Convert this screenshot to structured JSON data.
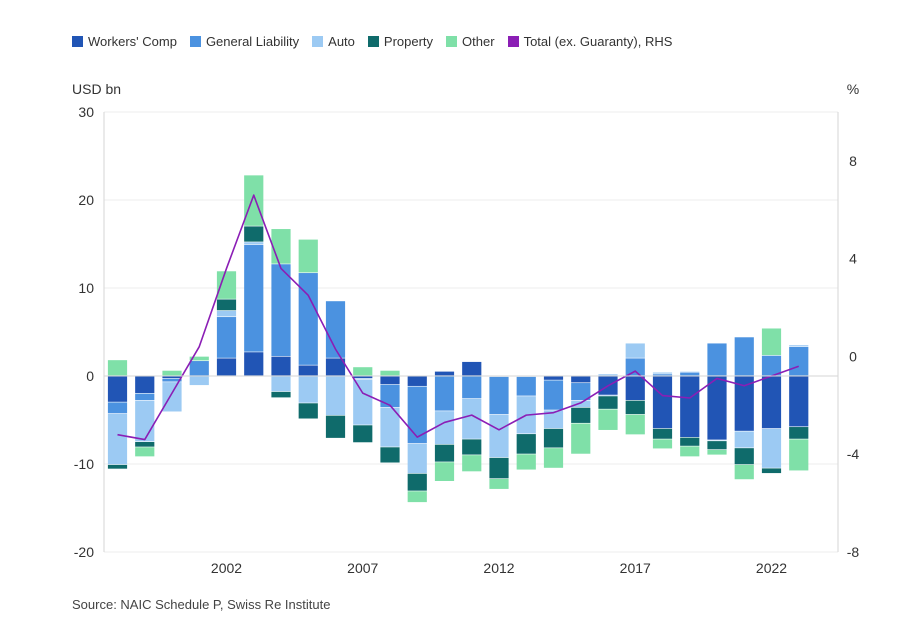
{
  "chart_data": {
    "type": "bar",
    "stacked": true,
    "left_axis_unit": "USD bn",
    "right_axis_unit": "%",
    "left_ylim": [
      -20,
      30
    ],
    "left_ticks": [
      "-20",
      "-10",
      "0",
      "10",
      "20",
      "30"
    ],
    "right_ylim": [
      -8,
      10
    ],
    "right_ticks": [
      "-8",
      "-4",
      "0",
      "4",
      "8"
    ],
    "years": [
      1998,
      1999,
      2000,
      2001,
      2002,
      2003,
      2004,
      2005,
      2006,
      2007,
      2008,
      2009,
      2010,
      2011,
      2012,
      2013,
      2014,
      2015,
      2016,
      2017,
      2018,
      2019,
      2020,
      2021,
      2022,
      2023
    ],
    "x_tick_labels": [
      "2002",
      "2007",
      "2012",
      "2017",
      "2022"
    ],
    "series": [
      {
        "name": "Workers' Comp",
        "color": "#2155b5",
        "values": [
          -3.0,
          -2.0,
          -0.3,
          0.0,
          2.0,
          2.7,
          2.2,
          1.2,
          2.0,
          -0.3,
          -1.0,
          -1.2,
          0.5,
          1.6,
          -0.1,
          -0.1,
          -0.5,
          -0.8,
          -2.2,
          -2.8,
          -6.0,
          -7.0,
          -7.3,
          -6.3,
          -6.0,
          -5.8
        ]
      },
      {
        "name": "General Liability",
        "color": "#4b92e0",
        "values": [
          -1.3,
          -0.8,
          -0.4,
          1.7,
          4.7,
          12.2,
          10.5,
          10.5,
          6.5,
          -0.1,
          -2.6,
          -6.5,
          -4.0,
          -2.6,
          -4.3,
          -2.2,
          -3.4,
          -2.0,
          -0.1,
          2.0,
          0.2,
          0.4,
          3.7,
          4.4,
          2.3,
          3.3
        ]
      },
      {
        "name": "Auto",
        "color": "#9ccaf3",
        "values": [
          -5.8,
          -4.7,
          -3.4,
          -1.1,
          0.7,
          0.3,
          -1.8,
          -3.1,
          -4.5,
          -5.2,
          -4.5,
          -3.4,
          -3.8,
          -4.6,
          -4.9,
          -4.3,
          -2.1,
          -0.8,
          0.2,
          1.7,
          0.2,
          0.1,
          -0.1,
          -1.9,
          -4.5,
          0.2
        ]
      },
      {
        "name": "Property",
        "color": "#0f6b6b",
        "values": [
          -0.5,
          -0.6,
          0.0,
          0.0,
          1.3,
          1.8,
          -0.7,
          -1.8,
          -2.6,
          -2.0,
          -1.8,
          -2.0,
          -2.0,
          -1.8,
          -2.4,
          -2.3,
          -2.2,
          -1.8,
          -1.5,
          -1.6,
          -1.2,
          -1.0,
          -1.0,
          -1.9,
          -0.6,
          -1.4
        ]
      },
      {
        "name": "Other",
        "color": "#7fe0a8",
        "values": [
          1.8,
          -1.1,
          0.6,
          0.5,
          3.2,
          5.8,
          4.0,
          3.8,
          0.0,
          1.0,
          0.6,
          -1.3,
          -2.2,
          -1.9,
          -1.2,
          -1.8,
          -2.3,
          -3.5,
          -2.4,
          -2.3,
          -1.1,
          -1.2,
          -0.6,
          -1.7,
          3.1,
          -3.6
        ]
      },
      {
        "name": "Total (ex. Guaranty), RHS",
        "color": "#8b1eb5",
        "axis": "right",
        "type": "line",
        "values": [
          -3.2,
          -3.4,
          -1.5,
          0.4,
          3.6,
          6.6,
          3.6,
          2.5,
          0.3,
          -1.5,
          -2.0,
          -3.3,
          -2.7,
          -2.4,
          -3.0,
          -2.4,
          -2.3,
          -1.9,
          -1.2,
          -0.6,
          -1.6,
          -1.7,
          -0.9,
          -1.2,
          -0.8,
          -0.4
        ]
      }
    ]
  },
  "source": "Source: NAIC Schedule P, Swiss Re Institute"
}
